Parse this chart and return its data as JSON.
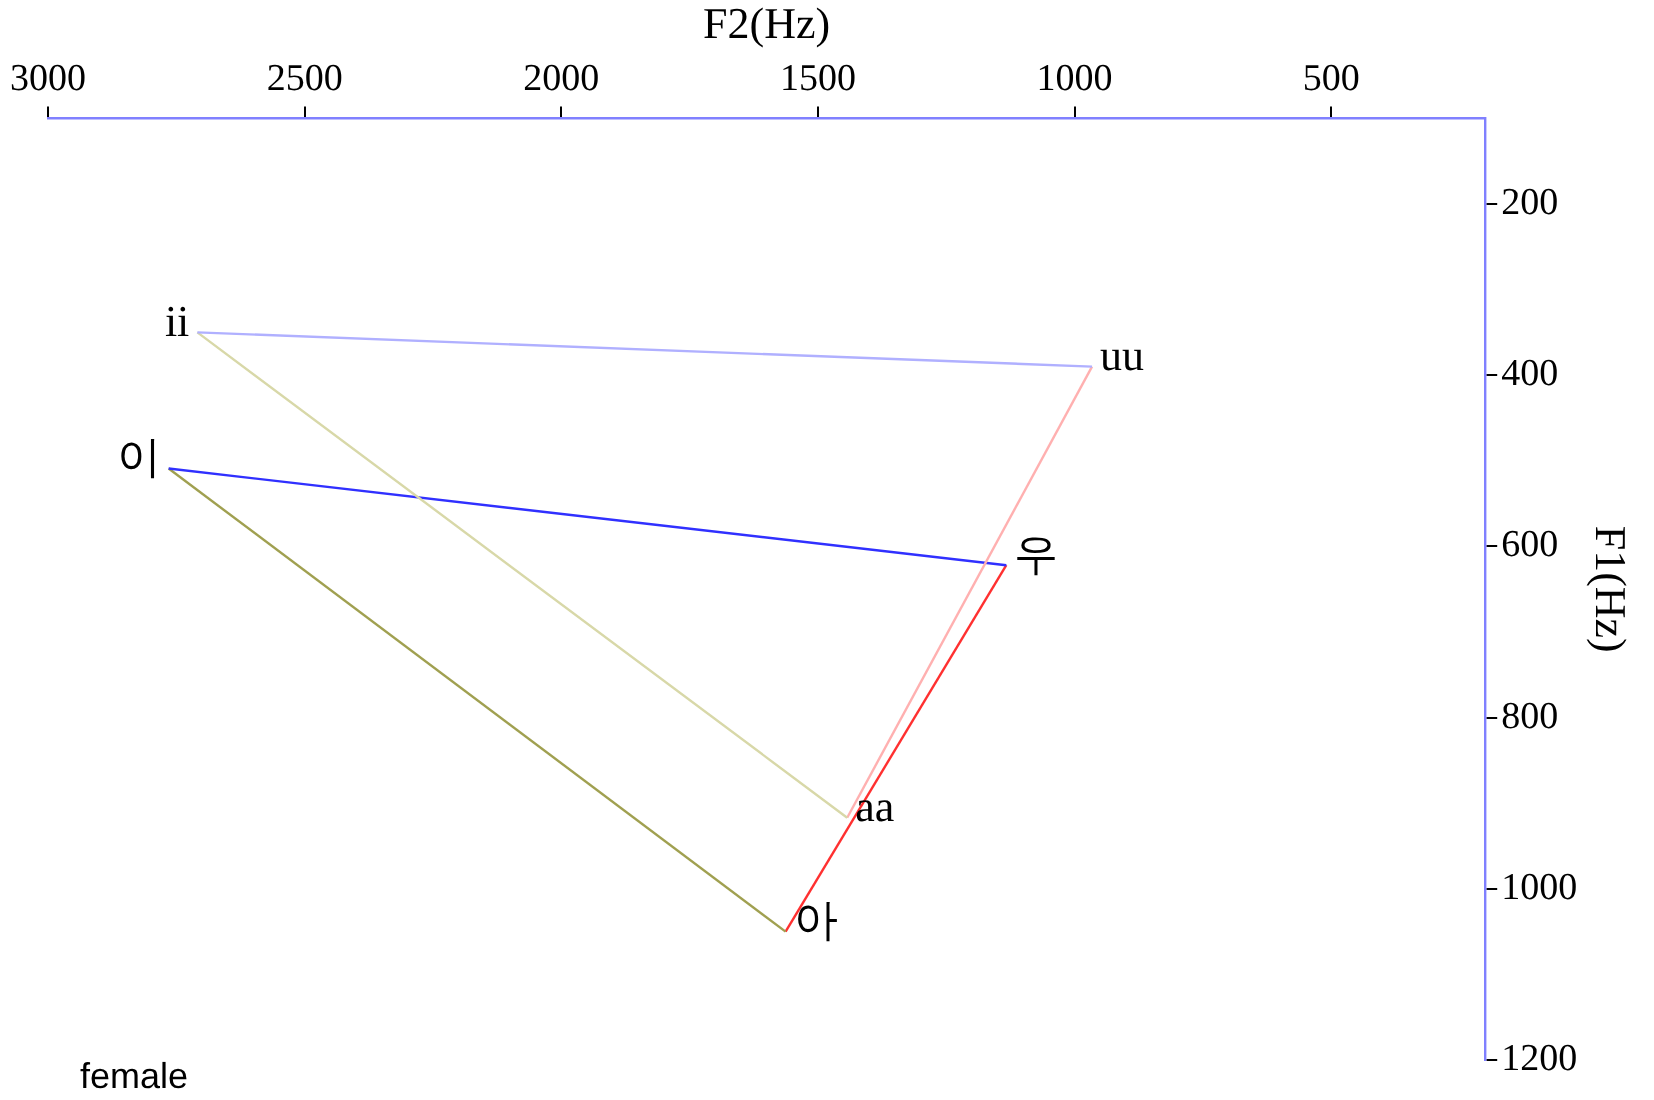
{
  "chart_data": {
    "type": "line",
    "xlabel": "F2(Hz)",
    "ylabel": "F1(Hz)",
    "xlim": [
      3000,
      200
    ],
    "xticks": [
      3000,
      2500,
      2000,
      1500,
      1000,
      500
    ],
    "ylim": [
      1200,
      100
    ],
    "yticks": [
      200,
      400,
      600,
      800,
      1000,
      1200
    ],
    "grid": false,
    "legend": false,
    "marker": "none",
    "line_style": "solid",
    "series": [
      {
        "color": "#b0b0ff",
        "x": [
          2709,
          966
        ],
        "values": [
          350,
          390
        ]
      },
      {
        "color": "#d8d8a8",
        "x": [
          2709,
          1443
        ],
        "values": [
          350,
          917
        ]
      },
      {
        "color": "#ffb0b0",
        "x": [
          966,
          1443
        ],
        "values": [
          390,
          917
        ]
      },
      {
        "color": "#3030ff",
        "x": [
          2765,
          1133
        ],
        "values": [
          509,
          622
        ]
      },
      {
        "color": "#a0a050",
        "x": [
          2765,
          1563
        ],
        "values": [
          509,
          1050
        ]
      },
      {
        "color": "#ff3030",
        "x": [
          1133,
          1563
        ],
        "values": [
          622,
          1050
        ]
      }
    ],
    "annotations": [
      {
        "text": "ii",
        "x": 2709,
        "y": 350
      },
      {
        "text": "uu",
        "x": 966,
        "y": 390
      },
      {
        "text": "aa",
        "x": 1443,
        "y": 917
      },
      {
        "text": "이",
        "x": 2765,
        "y": 509
      },
      {
        "text": "우",
        "x": 1133,
        "y": 622
      },
      {
        "text": "아",
        "x": 1563,
        "y": 1050
      },
      "female"
    ]
  }
}
